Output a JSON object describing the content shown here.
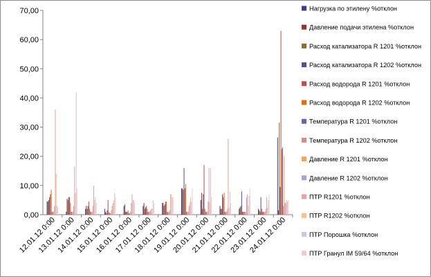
{
  "chart_data": {
    "type": "bar",
    "ylim": [
      0,
      70
    ],
    "yticks": [
      "0,00",
      "10,00",
      "20,00",
      "30,00",
      "40,00",
      "50,00",
      "60,00",
      "70,00"
    ],
    "grid": false,
    "legend_position": "right",
    "categories": [
      "12.01.12 0:00",
      "13.01.12 0:00",
      "14.01.12 0:00",
      "15.01.12 0:00",
      "16.01.12 0:00",
      "17.01.12 0:00",
      "18.01.12 0:00",
      "19.01.12 0:00",
      "20.01.12 0:00",
      "21.01.12 0:00",
      "22.01.12 0:00",
      "23.01.12 0:00",
      "24.01.12 0:00"
    ],
    "series": [
      {
        "name": "Нагрузка по этилену %отклон",
        "color": "#3b3f8c",
        "values": [
          4.5,
          1.0,
          2.0,
          2.0,
          3.0,
          3.0,
          4.0,
          9.0,
          5.0,
          3.0,
          2.0,
          2.0,
          26.5
        ]
      },
      {
        "name": "Давление подачи этилена %отклон",
        "color": "#963634",
        "values": [
          4.5,
          5.5,
          3.0,
          1.0,
          3.5,
          4.0,
          4.0,
          9.0,
          7.5,
          2.0,
          2.5,
          1.5,
          1.5
        ]
      },
      {
        "name": "Расход катализатора R 1201 %отклон",
        "color": "#8a6d2f",
        "values": [
          5.0,
          5.0,
          2.0,
          0.5,
          1.0,
          2.0,
          3.0,
          8.5,
          2.0,
          2.0,
          3.0,
          1.0,
          31.5
        ]
      },
      {
        "name": "Расход катализатора R 1202 %отклон",
        "color": "#5b4a9c",
        "values": [
          6.0,
          6.0,
          3.0,
          1.5,
          1.0,
          2.5,
          3.5,
          16.0,
          7.0,
          7.0,
          8.0,
          6.0,
          9.5
        ]
      },
      {
        "name": "Расход водорода R 1201 %отклон",
        "color": "#c0504d",
        "values": [
          7.0,
          6.0,
          4.5,
          5.0,
          1.0,
          3.0,
          4.5,
          9.0,
          17.0,
          6.0,
          1.0,
          2.0,
          63.0
        ]
      },
      {
        "name": "Расход водорода R 1202 %отклон",
        "color": "#e46c0a",
        "values": [
          8.5,
          4.0,
          2.0,
          1.0,
          1.5,
          2.0,
          4.5,
          10.5,
          2.0,
          7.5,
          1.0,
          1.0,
          22.5
        ]
      },
      {
        "name": "Температура R 1201 %отклон",
        "color": "#7060a8",
        "values": [
          1.0,
          1.0,
          1.0,
          0.5,
          0.5,
          1.0,
          1.0,
          1.0,
          1.0,
          1.0,
          1.0,
          1.0,
          23.0
        ]
      },
      {
        "name": "Температура R 1202 %отклон",
        "color": "#d8888a",
        "values": [
          1.0,
          1.0,
          1.0,
          0.5,
          0.5,
          1.0,
          1.0,
          1.0,
          1.0,
          1.0,
          1.0,
          1.0,
          3.0
        ]
      },
      {
        "name": "Давление R 1201 %отклон",
        "color": "#f7a35c",
        "values": [
          1.0,
          1.0,
          1.0,
          1.5,
          1.0,
          1.0,
          1.0,
          1.0,
          1.0,
          1.0,
          1.0,
          1.0,
          20.0
        ]
      },
      {
        "name": "Давление R 1202 %отклон",
        "color": "#a9a3d4",
        "values": [
          3.0,
          3.0,
          3.0,
          3.0,
          4.0,
          1.5,
          1.5,
          3.0,
          4.5,
          2.0,
          6.0,
          2.0,
          4.0
        ]
      },
      {
        "name": "ПТР R1201 %отклон",
        "color": "#e9a3a6",
        "values": [
          36.0,
          16.5,
          10.0,
          4.0,
          7.0,
          2.0,
          7.0,
          4.0,
          16.0,
          26.0,
          7.0,
          6.0,
          4.0
        ]
      },
      {
        "name": "ПТР R1202 %отклон",
        "color": "#fac08f",
        "values": [
          14.0,
          7.5,
          5.0,
          5.0,
          5.0,
          2.0,
          7.0,
          6.0,
          4.0,
          2.5,
          3.0,
          2.5,
          5.0
        ]
      },
      {
        "name": "ПТР Порошка %отклон",
        "color": "#c8c8ea",
        "values": [
          3.0,
          42.0,
          6.0,
          7.5,
          5.0,
          5.0,
          6.0,
          4.5,
          16.0,
          8.0,
          6.5,
          5.0,
          4.5
        ]
      },
      {
        "name": "ПТР Гранул IM 59/64 %отклон",
        "color": "#f5c9cb",
        "values": [
          2.5,
          9.0,
          4.0,
          6.0,
          4.0,
          4.0,
          6.0,
          9.0,
          6.0,
          4.0,
          9.0,
          7.0,
          5.0
        ]
      }
    ]
  }
}
